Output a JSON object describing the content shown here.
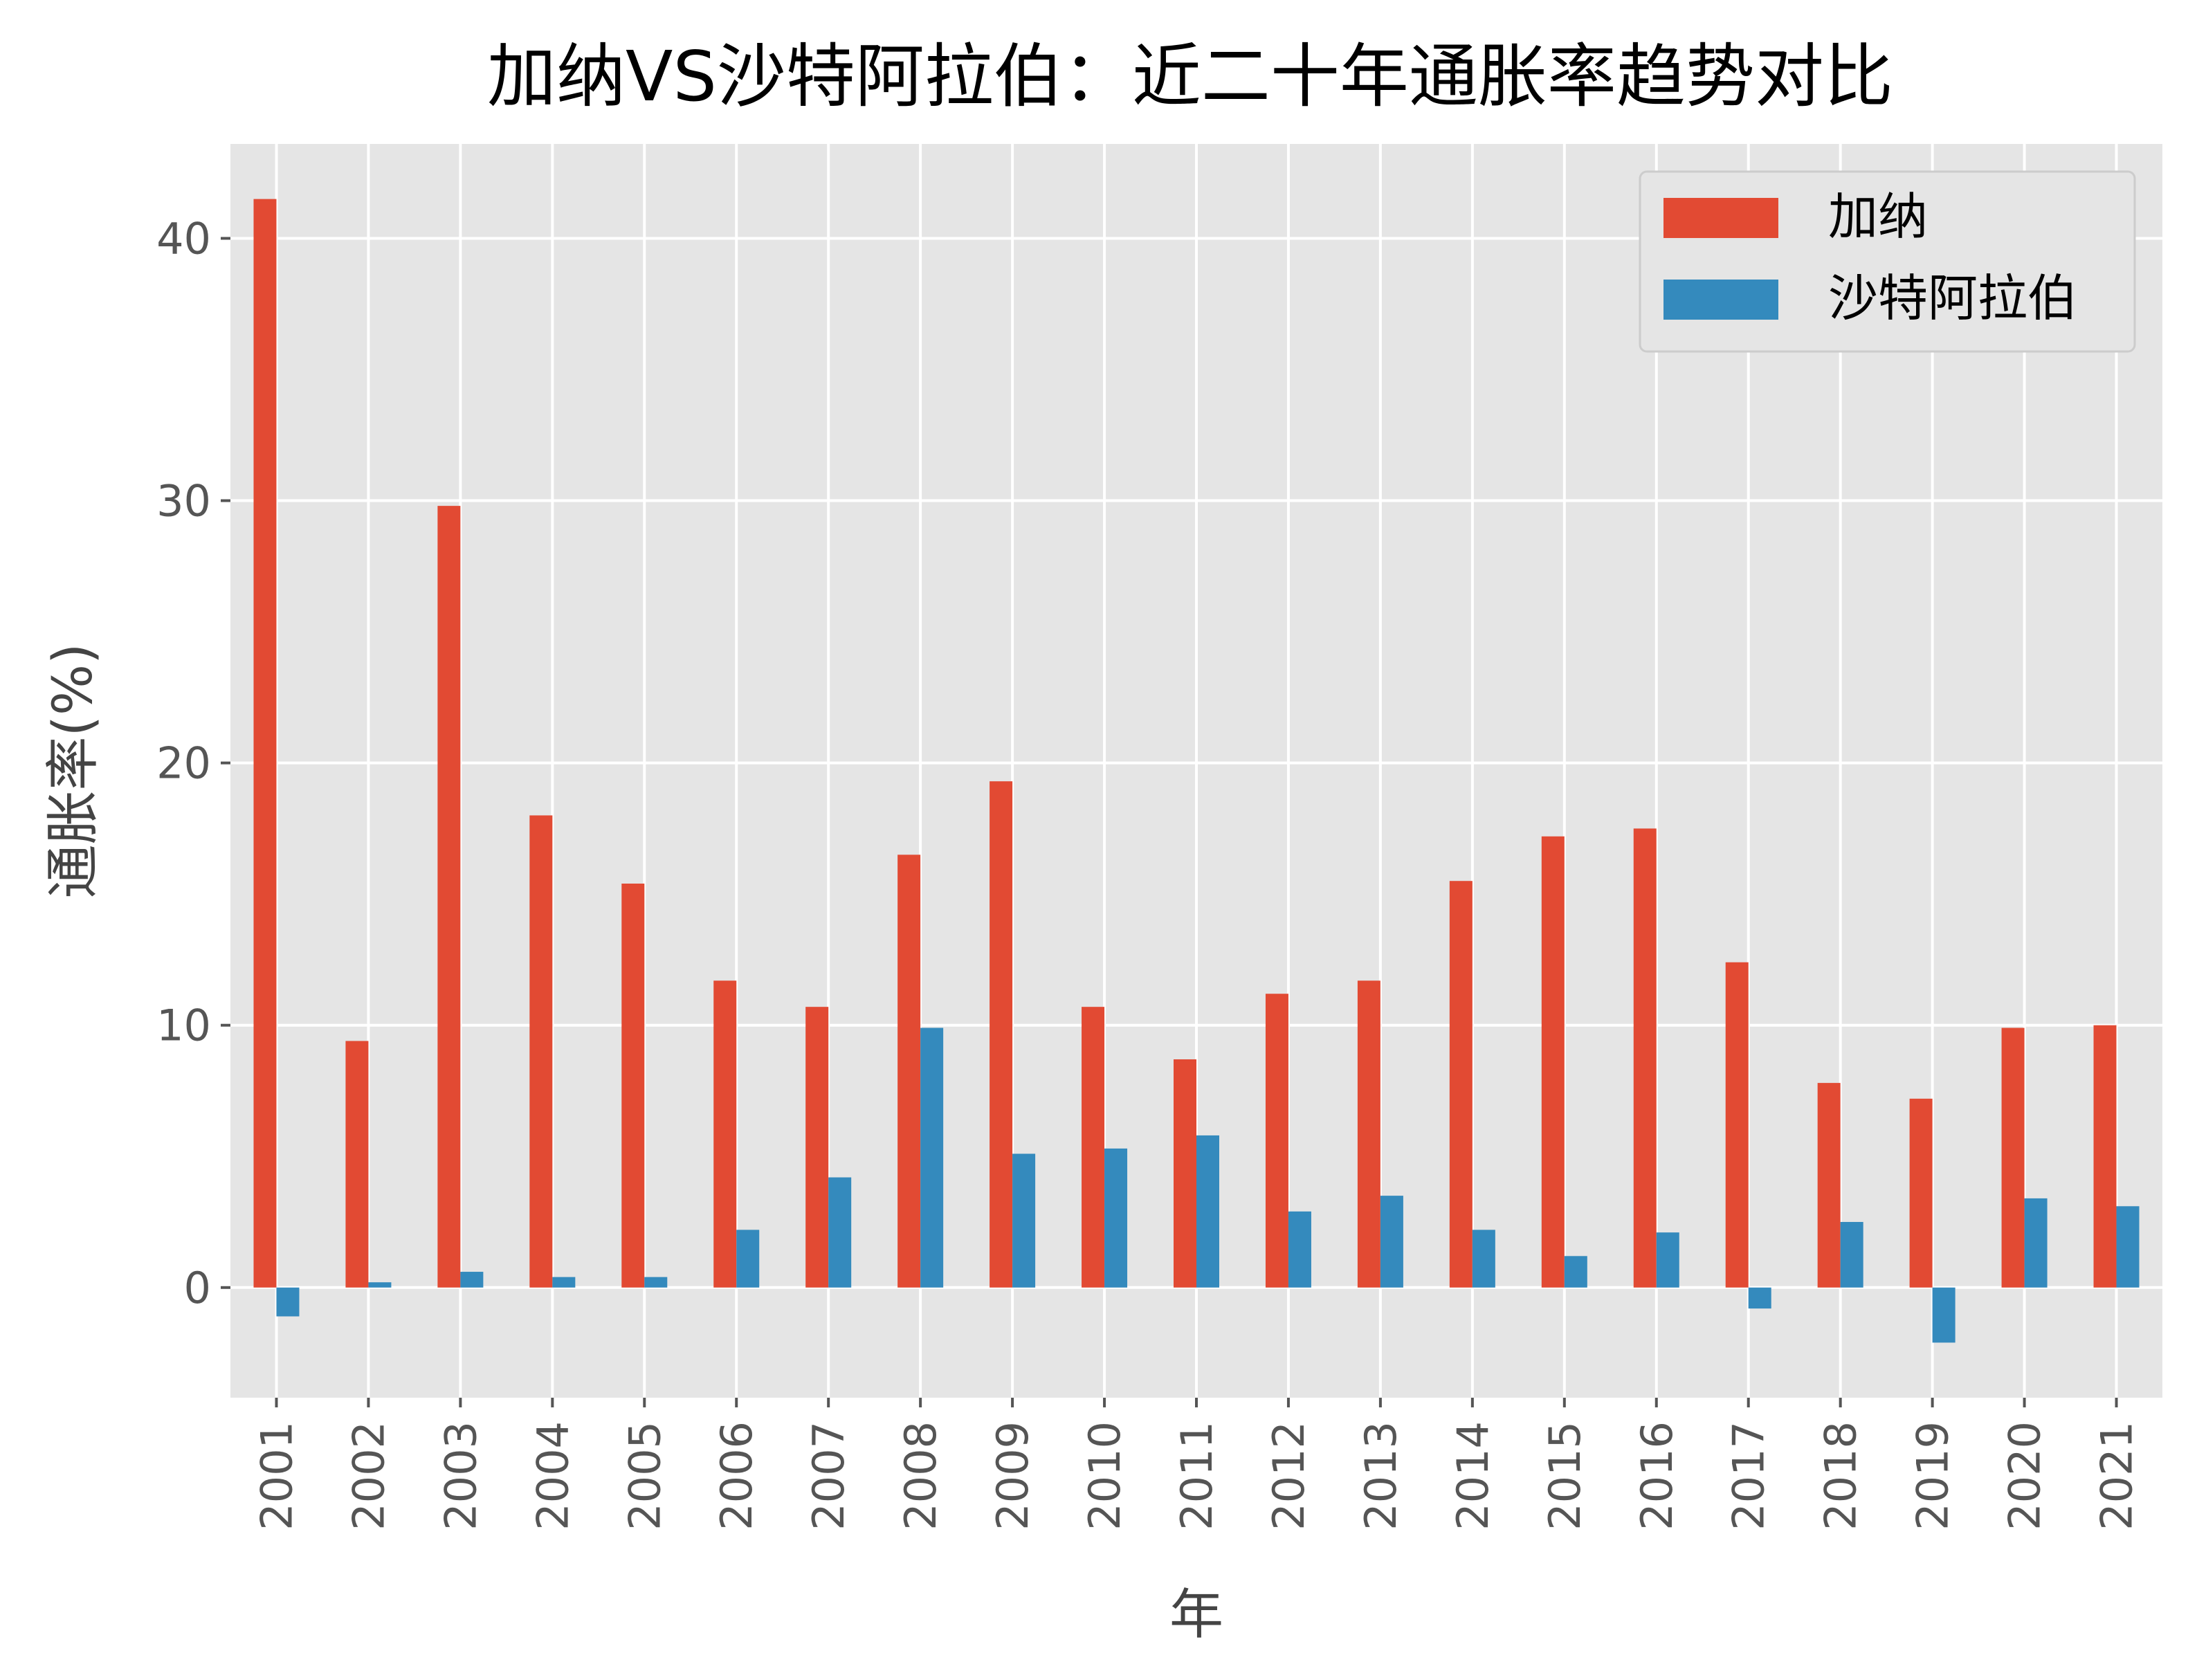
{
  "chart_data": {
    "type": "bar",
    "title": "加纳VS沙特阿拉伯：近二十年通胀率趋势对比",
    "xlabel": "年",
    "ylabel": "通胀率(%)",
    "ylim": [
      -4.2,
      43.6
    ],
    "yticks": [
      0,
      10,
      20,
      30,
      40
    ],
    "grid": true,
    "legend_position": "top-right",
    "categories": [
      "2001",
      "2002",
      "2003",
      "2004",
      "2005",
      "2006",
      "2007",
      "2008",
      "2009",
      "2010",
      "2011",
      "2012",
      "2013",
      "2014",
      "2015",
      "2016",
      "2017",
      "2018",
      "2019",
      "2020",
      "2021"
    ],
    "series": [
      {
        "name": "加纳",
        "color": "#E24A33",
        "values": [
          41.5,
          9.4,
          29.8,
          18.0,
          15.4,
          11.7,
          10.7,
          16.5,
          19.3,
          10.7,
          8.7,
          11.2,
          11.7,
          15.5,
          17.2,
          17.5,
          12.4,
          7.8,
          7.2,
          9.9,
          10.0
        ]
      },
      {
        "name": "沙特阿拉伯",
        "color": "#348ABD",
        "values": [
          -1.1,
          0.2,
          0.6,
          0.4,
          0.4,
          2.2,
          4.2,
          9.9,
          5.1,
          5.3,
          5.8,
          2.9,
          3.5,
          2.2,
          1.2,
          2.1,
          -0.8,
          2.5,
          -2.1,
          3.4,
          3.1
        ]
      }
    ],
    "colors": {
      "plot_background": "#E5E5E5",
      "grid": "#FFFFFF",
      "axis_text": "#555555"
    }
  }
}
